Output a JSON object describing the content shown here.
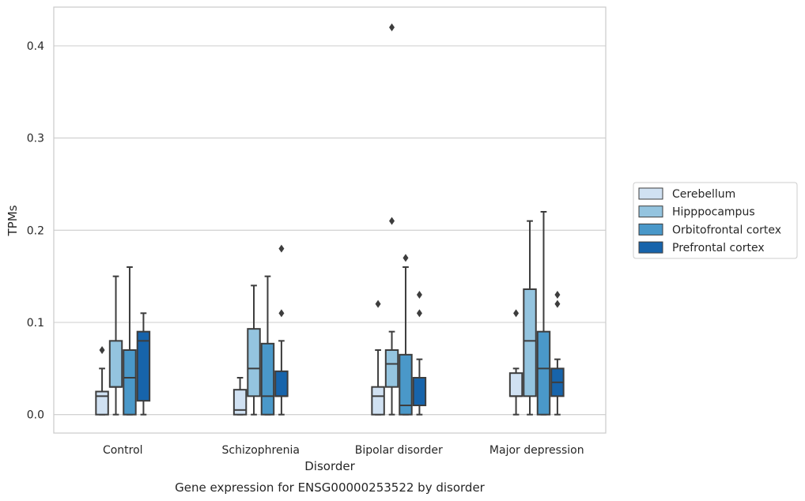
{
  "chart_data": {
    "type": "box",
    "title": "",
    "caption": "Gene expression for ENSG00000253522 by disorder",
    "xlabel": "Disorder",
    "ylabel": "TPMs",
    "ylim": [
      -0.02,
      0.442
    ],
    "yticks": [
      "0.0",
      "0.1",
      "0.2",
      "0.3",
      "0.4"
    ],
    "ytick_values": [
      0.0,
      0.1,
      0.2,
      0.3,
      0.4
    ],
    "grid": "horizontal",
    "legend_position": "right",
    "categories": [
      "Control",
      "Schizophrenia",
      "Bipolar disorder",
      "Major depression"
    ],
    "series": [
      {
        "name": "Cerebellum",
        "color": "#d0e1f2",
        "boxes": [
          {
            "whisker_low": 0.0,
            "q1": 0.0,
            "median": 0.02,
            "q3": 0.025,
            "whisker_high": 0.05,
            "outliers": [
              0.07
            ]
          },
          {
            "whisker_low": 0.0,
            "q1": 0.0,
            "median": 0.005,
            "q3": 0.027,
            "whisker_high": 0.04,
            "outliers": []
          },
          {
            "whisker_low": 0.0,
            "q1": 0.0,
            "median": 0.02,
            "q3": 0.03,
            "whisker_high": 0.07,
            "outliers": [
              0.12
            ]
          },
          {
            "whisker_low": 0.0,
            "q1": 0.02,
            "median": 0.02,
            "q3": 0.045,
            "whisker_high": 0.05,
            "outliers": [
              0.11
            ]
          }
        ]
      },
      {
        "name": "Hipppocampus",
        "color": "#94c4df",
        "boxes": [
          {
            "whisker_low": 0.0,
            "q1": 0.03,
            "median": 0.03,
            "q3": 0.08,
            "whisker_high": 0.15,
            "outliers": []
          },
          {
            "whisker_low": 0.0,
            "q1": 0.02,
            "median": 0.05,
            "q3": 0.093,
            "whisker_high": 0.14,
            "outliers": []
          },
          {
            "whisker_low": 0.0,
            "q1": 0.03,
            "median": 0.055,
            "q3": 0.07,
            "whisker_high": 0.09,
            "outliers": [
              0.21,
              0.42
            ]
          },
          {
            "whisker_low": 0.0,
            "q1": 0.02,
            "median": 0.08,
            "q3": 0.136,
            "whisker_high": 0.21,
            "outliers": []
          }
        ]
      },
      {
        "name": "Orbitofrontal cortex",
        "color": "#4a98c9",
        "boxes": [
          {
            "whisker_low": 0.0,
            "q1": 0.0,
            "median": 0.04,
            "q3": 0.07,
            "whisker_high": 0.16,
            "outliers": []
          },
          {
            "whisker_low": 0.0,
            "q1": 0.0,
            "median": 0.02,
            "q3": 0.077,
            "whisker_high": 0.15,
            "outliers": []
          },
          {
            "whisker_low": 0.0,
            "q1": 0.0,
            "median": 0.01,
            "q3": 0.065,
            "whisker_high": 0.16,
            "outliers": [
              0.17
            ]
          },
          {
            "whisker_low": 0.0,
            "q1": 0.0,
            "median": 0.05,
            "q3": 0.09,
            "whisker_high": 0.22,
            "outliers": []
          }
        ]
      },
      {
        "name": "Prefrontal cortex",
        "color": "#1764ab",
        "boxes": [
          {
            "whisker_low": 0.0,
            "q1": 0.015,
            "median": 0.08,
            "q3": 0.09,
            "whisker_high": 0.11,
            "outliers": []
          },
          {
            "whisker_low": 0.0,
            "q1": 0.02,
            "median": 0.02,
            "q3": 0.047,
            "whisker_high": 0.08,
            "outliers": [
              0.11,
              0.18
            ]
          },
          {
            "whisker_low": 0.0,
            "q1": 0.01,
            "median": 0.01,
            "q3": 0.04,
            "whisker_high": 0.06,
            "outliers": [
              0.11,
              0.13
            ]
          },
          {
            "whisker_low": 0.0,
            "q1": 0.02,
            "median": 0.035,
            "q3": 0.05,
            "whisker_high": 0.06,
            "outliers": [
              0.12,
              0.13
            ]
          }
        ]
      }
    ]
  }
}
